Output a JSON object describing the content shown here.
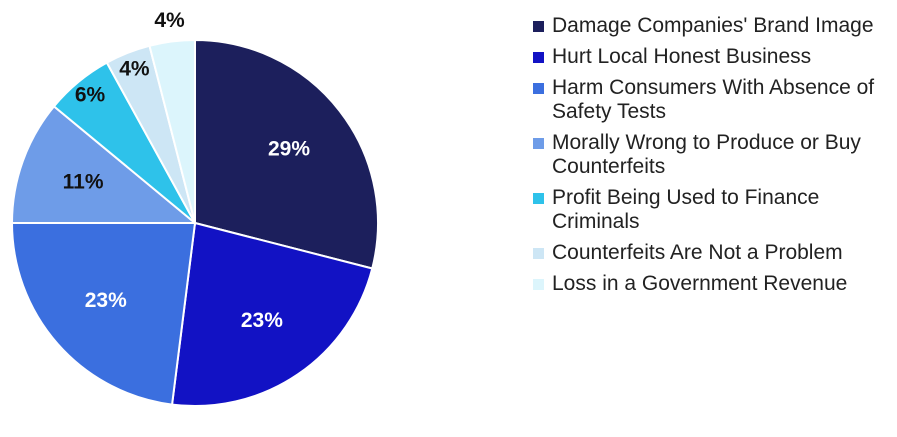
{
  "chart_data": {
    "type": "pie",
    "categories": [
      "Damage Companies' Brand Image",
      "Hurt Local Honest Business",
      "Harm Consumers With Absence of Safety Tests",
      "Morally Wrong to Produce or Buy Counterfeits",
      "Profit Being Used to Finance Criminals",
      "Counterfeits Are Not a Problem",
      "Loss in a Government Revenue"
    ],
    "values": [
      29,
      23,
      23,
      11,
      6,
      4,
      4
    ],
    "value_labels": [
      "29%",
      "23%",
      "23%",
      "11%",
      "6%",
      "4%",
      "4%"
    ],
    "colors": [
      "#1c1f5c",
      "#1212c4",
      "#3b6fdf",
      "#6e9ce8",
      "#2ec2ea",
      "#cde6f5",
      "#dcf5fc"
    ],
    "legend": "right"
  }
}
